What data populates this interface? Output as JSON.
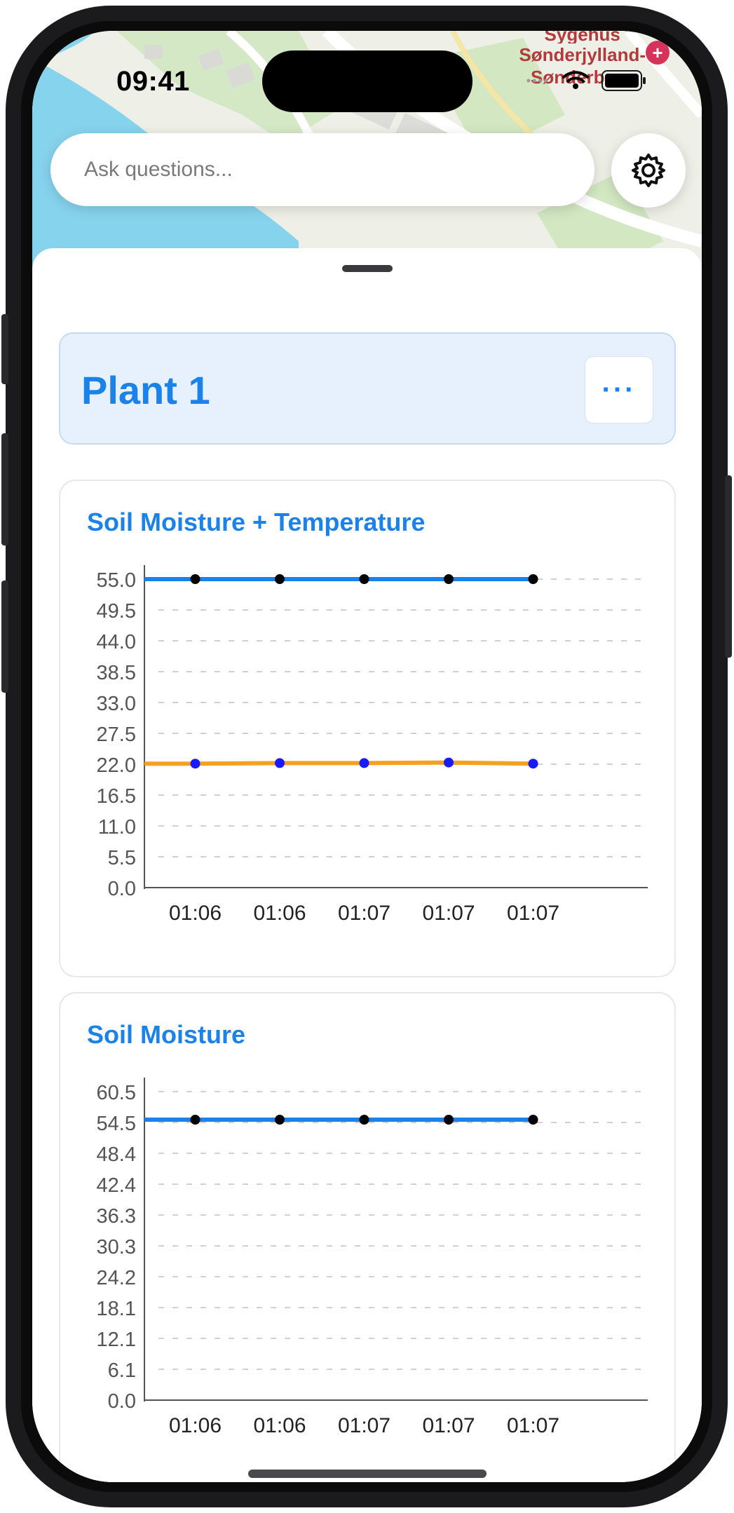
{
  "status_bar": {
    "time": "09:41"
  },
  "map": {
    "hospital_label_lines": [
      "Sygehus",
      "Sønderjylland-",
      "Sønderborg"
    ]
  },
  "search": {
    "placeholder": "Ask questions..."
  },
  "plant": {
    "title": "Plant 1",
    "menu_label": "···"
  },
  "cards": [
    {
      "title": "Soil Moisture + Temperature"
    },
    {
      "title": "Soil Moisture"
    }
  ],
  "chart_data": [
    {
      "type": "line",
      "title": "Soil Moisture + Temperature",
      "categories": [
        "01:06",
        "01:06",
        "01:06",
        "01:07",
        "01:07",
        "01:07"
      ],
      "yticks": [
        "55.0",
        "49.5",
        "44.0",
        "38.5",
        "33.0",
        "27.5",
        "22.0",
        "16.5",
        "11.0",
        "5.5",
        "0.0"
      ],
      "ylim": [
        0,
        55
      ],
      "grid": true,
      "series": [
        {
          "color": "#1a82e8",
          "point_color": "#000000",
          "values": [
            55,
            55,
            55,
            55,
            55,
            55
          ]
        },
        {
          "color": "#f5a020",
          "point_color": "#1a1aff",
          "values": [
            22.1,
            22.1,
            22.2,
            22.2,
            22.3,
            22.1
          ]
        }
      ]
    },
    {
      "type": "line",
      "title": "Soil Moisture",
      "categories": [
        "01:06",
        "01:06",
        "01:06",
        "01:07",
        "01:07",
        "01:07"
      ],
      "yticks": [
        "60.5",
        "54.5",
        "48.4",
        "42.4",
        "36.3",
        "30.3",
        "24.2",
        "18.1",
        "12.1",
        "6.1",
        "0.0"
      ],
      "ylim": [
        0,
        60.5
      ],
      "grid": true,
      "series": [
        {
          "color": "#1a82e8",
          "point_color": "#000000",
          "values": [
            55,
            55,
            55,
            55,
            55,
            55
          ]
        }
      ]
    }
  ]
}
